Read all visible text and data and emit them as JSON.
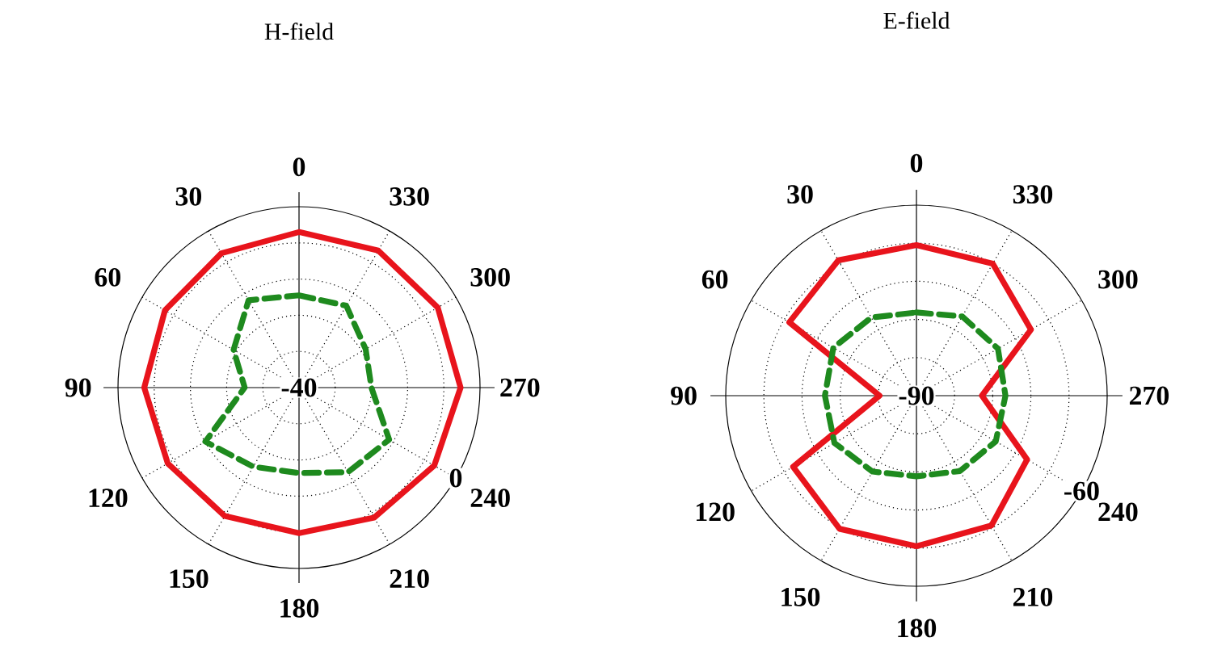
{
  "chart_data": [
    {
      "type": "radar",
      "title": "H-field",
      "categories": [
        "0",
        "330",
        "300",
        "270",
        "240",
        "210",
        "180",
        "150",
        "120",
        "90",
        "60",
        "30"
      ],
      "ylim": [
        -40,
        0
      ],
      "yticks": [
        -40,
        0
      ],
      "grid": true,
      "series": [
        {
          "color": "#e8141c",
          "line_style": "solid",
          "values": [
            -5.6,
            -5.0,
            -4.6,
            -4.3,
            -5.5,
            -6.8,
            -7.8,
            -7.2,
            -6.5,
            -5.8,
            -5.8,
            -5.7
          ]
        },
        {
          "color": "#1e8a1e",
          "line_style": "dashed",
          "values": [
            -19.6,
            -19.1,
            -23,
            -24,
            -17,
            -18.4,
            -21.1,
            -19.8,
            -16.1,
            -28,
            -23.3,
            -17.7
          ]
        }
      ]
    },
    {
      "type": "radar",
      "title": "E-field",
      "categories": [
        "0",
        "330",
        "300",
        "270",
        "240",
        "210",
        "180",
        "150",
        "120",
        "90",
        "60",
        "30"
      ],
      "ylim": [
        -90,
        -60
      ],
      "yticks": [
        -90,
        -60
      ],
      "grid": true,
      "series": [
        {
          "color": "#e8141c",
          "line_style": "solid",
          "values": [
            -66.3,
            -66,
            -69.2,
            -79.7,
            -69.9,
            -66.4,
            -66.3,
            -65.8,
            -67.6,
            -84.2,
            -66.9,
            -65.4
          ]
        },
        {
          "color": "#1e8a1e",
          "line_style": "dashed",
          "values": [
            -76.9,
            -75.6,
            -75.2,
            -76.0,
            -75.6,
            -76.3,
            -77.3,
            -76.2,
            -75.1,
            -75.6,
            -74.9,
            -75.8
          ]
        }
      ]
    }
  ]
}
